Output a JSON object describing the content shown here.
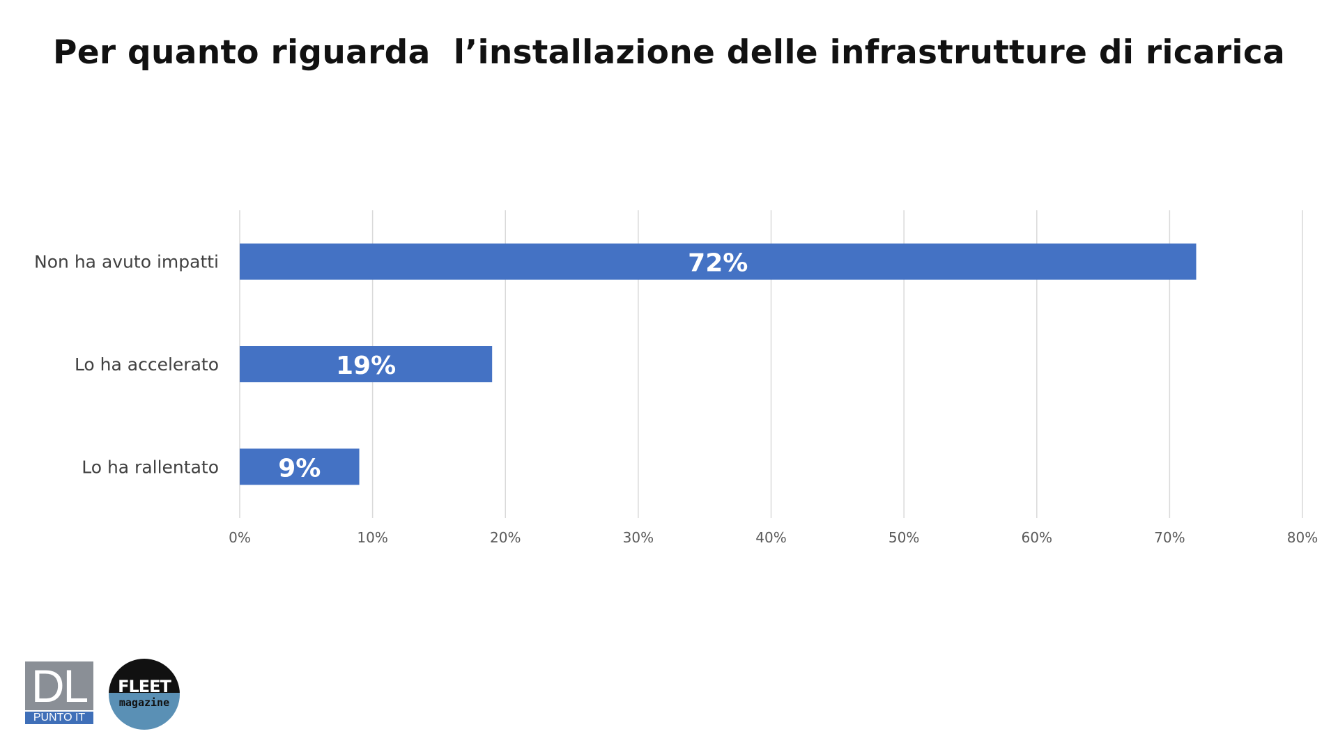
{
  "chart_data": {
    "type": "bar",
    "orientation": "horizontal",
    "title": "Per quanto riguarda  l’installazione delle infrastrutture di ricarica",
    "categories": [
      "Non ha avuto impatti",
      "Lo ha accelerato",
      "Lo ha rallentato"
    ],
    "values": [
      72,
      19,
      9
    ],
    "data_labels": [
      "72%",
      "19%",
      "9%"
    ],
    "x_ticks": [
      "0%",
      "10%",
      "20%",
      "30%",
      "40%",
      "50%",
      "60%",
      "70%",
      "80%"
    ],
    "xlim": [
      0,
      80
    ],
    "grid": true,
    "legend": "none",
    "bar_color": "#4472c4",
    "grid_color": "#d9d9d9"
  },
  "logos": {
    "dl": {
      "main": "DL",
      "sub": "PUNTO IT"
    },
    "fleet": {
      "main": "FLEET",
      "sub": "magazine"
    }
  }
}
